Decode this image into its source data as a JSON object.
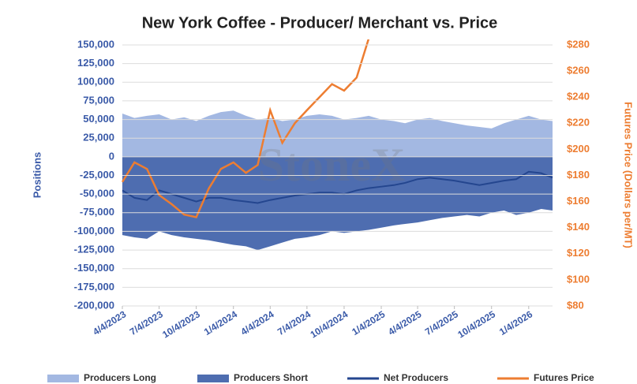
{
  "chart_data": {
    "type": "line",
    "title": "New York Coffee - Producer/ Merchant vs. Price",
    "watermark": "StoneX",
    "y_label": "Positions",
    "y2_label": "Futures Price (Dollars per/MT)",
    "x": [
      "4/4/2023",
      "5/4/2023",
      "6/4/2023",
      "7/4/2023",
      "8/4/2023",
      "9/4/2023",
      "10/4/2023",
      "11/4/2023",
      "12/4/2023",
      "1/4/2024",
      "2/4/2024",
      "3/4/2024",
      "4/4/2024",
      "5/4/2024",
      "6/4/2024",
      "7/4/2024",
      "8/4/2024",
      "9/4/2024",
      "10/4/2024",
      "11/4/2024",
      "12/4/2024",
      "1/4/2025",
      "2/4/2025",
      "3/4/2025",
      "4/4/2025",
      "5/4/2025",
      "6/4/2025",
      "7/4/2025",
      "8/4/2025",
      "9/4/2025",
      "10/4/2025",
      "11/4/2025",
      "12/4/2025",
      "1/4/2026",
      "2/4/2026",
      "3/4/2026"
    ],
    "xlim": [
      "4/4/2023",
      "3/4/2026"
    ],
    "xticks": [
      "4/4/2023",
      "7/4/2023",
      "10/4/2023",
      "1/4/2024",
      "4/4/2024",
      "7/4/2024",
      "10/4/2024",
      "1/4/2025",
      "4/4/2025",
      "7/4/2025",
      "10/4/2025",
      "1/4/2026"
    ],
    "ylim": [
      -200000,
      150000
    ],
    "yticks": [
      {
        "value": -200000,
        "label": "-200,000"
      },
      {
        "value": -175000,
        "label": "-175,000"
      },
      {
        "value": -150000,
        "label": "-150,000"
      },
      {
        "value": -125000,
        "label": "-125,000"
      },
      {
        "value": -100000,
        "label": "-100,000"
      },
      {
        "value": -75000,
        "label": "-75,000"
      },
      {
        "value": -50000,
        "label": "-50,000"
      },
      {
        "value": -25000,
        "label": "-25,000"
      },
      0,
      {
        "value": 25000,
        "label": "25,000"
      },
      {
        "value": 50000,
        "label": "50,000"
      },
      {
        "value": 75000,
        "label": "75,000"
      },
      {
        "value": 100000,
        "label": "100,000"
      },
      {
        "value": 125000,
        "label": "125,000"
      },
      {
        "value": 150000,
        "label": "150,000"
      }
    ],
    "y2lim": [
      80,
      280
    ],
    "y2ticks": [
      {
        "value": 80,
        "label": "$80"
      },
      {
        "value": 100,
        "label": "$100"
      },
      {
        "value": 120,
        "label": "$120"
      },
      {
        "value": 140,
        "label": "$140"
      },
      {
        "value": 160,
        "label": "$160"
      },
      {
        "value": 180,
        "label": "$180"
      },
      {
        "value": 200,
        "label": "$200"
      },
      {
        "value": 220,
        "label": "$220"
      },
      {
        "value": 240,
        "label": "$240"
      },
      {
        "value": 260,
        "label": "$260"
      },
      {
        "value": 280,
        "label": "$280"
      }
    ],
    "grid": true,
    "legend": "bottom",
    "series": [
      {
        "name": "Producers Long",
        "kind": "area",
        "color": "#a3b8e2",
        "values": [
          58000,
          52000,
          55000,
          57000,
          50000,
          53000,
          48000,
          55000,
          60000,
          62000,
          55000,
          50000,
          52000,
          48000,
          50000,
          55000,
          57000,
          55000,
          50000,
          52000,
          55000,
          50000,
          48000,
          45000,
          50000,
          52000,
          48000,
          45000,
          42000,
          40000,
          38000,
          45000,
          50000,
          55000,
          50000,
          48000
        ]
      },
      {
        "name": "Producers Short",
        "kind": "area",
        "color": "#4e6db0",
        "values": [
          -105000,
          -108000,
          -110000,
          -100000,
          -105000,
          -108000,
          -110000,
          -112000,
          -115000,
          -118000,
          -120000,
          -125000,
          -120000,
          -115000,
          -110000,
          -108000,
          -105000,
          -100000,
          -102000,
          -100000,
          -98000,
          -95000,
          -92000,
          -90000,
          -88000,
          -85000,
          -82000,
          -80000,
          -78000,
          -80000,
          -75000,
          -72000,
          -78000,
          -75000,
          -70000,
          -72000
        ]
      },
      {
        "name": "Net Producers",
        "kind": "line",
        "color": "#24468f",
        "values": [
          -45000,
          -55000,
          -58000,
          -45000,
          -50000,
          -55000,
          -60000,
          -55000,
          -55000,
          -58000,
          -60000,
          -62000,
          -58000,
          -55000,
          -52000,
          -50000,
          -48000,
          -48000,
          -50000,
          -45000,
          -42000,
          -40000,
          -38000,
          -35000,
          -30000,
          -28000,
          -30000,
          -32000,
          -35000,
          -38000,
          -35000,
          -32000,
          -30000,
          -20000,
          -22000,
          -28000
        ]
      },
      {
        "name": "Futures Price",
        "kind": "line",
        "axis": "y2",
        "color": "#ed7d31",
        "values": [
          175,
          190,
          185,
          165,
          158,
          150,
          148,
          170,
          185,
          190,
          182,
          188,
          230,
          205,
          220,
          230,
          240,
          250,
          245,
          255,
          285,
          null,
          null,
          null,
          null,
          null,
          null,
          null,
          null,
          null,
          null,
          null,
          null,
          null,
          null,
          null
        ]
      }
    ]
  }
}
